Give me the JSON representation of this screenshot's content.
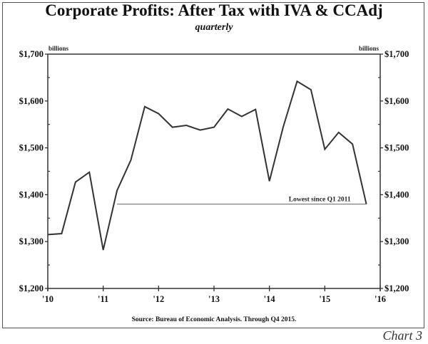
{
  "chart_data": {
    "type": "line",
    "title": "Corporate Profits: After Tax with IVA & CCAdj",
    "subtitle": "quarterly",
    "ylabel_left": "billions",
    "ylabel_right": "billions",
    "xlabel": "",
    "ylim": [
      1200,
      1700
    ],
    "yticks": [
      1200,
      1300,
      1400,
      1500,
      1600,
      1700
    ],
    "ytick_labels": [
      "$1,200",
      "$1,300",
      "$1,400",
      "$1,500",
      "$1,600",
      "$1,700"
    ],
    "xlim": [
      2010,
      2016
    ],
    "xticks": [
      2010,
      2011,
      2012,
      2013,
      2014,
      2015,
      2016
    ],
    "xtick_labels": [
      "'10",
      "'11",
      "'12",
      "'13",
      "'14",
      "'15",
      "'16"
    ],
    "grid": false,
    "series": [
      {
        "name": "Corporate Profits After Tax with IVA & CCAdj",
        "color": "#333333",
        "x": [
          2010.0,
          2010.25,
          2010.5,
          2010.75,
          2011.0,
          2011.25,
          2011.5,
          2011.75,
          2012.0,
          2012.25,
          2012.5,
          2012.75,
          2013.0,
          2013.25,
          2013.5,
          2013.75,
          2014.0,
          2014.25,
          2014.5,
          2014.75,
          2015.0,
          2015.25,
          2015.5,
          2015.75
        ],
        "values": [
          1315,
          1317,
          1427,
          1448,
          1282,
          1409,
          1474,
          1588,
          1573,
          1544,
          1548,
          1538,
          1544,
          1583,
          1567,
          1582,
          1429,
          1545,
          1642,
          1624,
          1497,
          1533,
          1508,
          1380
        ]
      }
    ],
    "annotations": [
      {
        "text": "Lowest since Q1 2011",
        "type": "hline",
        "y": 1380,
        "x_range": [
          2011.25,
          2015.75
        ]
      }
    ],
    "source": "Source:  Bureau of Economic Analysis. Through Q4 2015.",
    "chart_label": "Chart 3"
  }
}
